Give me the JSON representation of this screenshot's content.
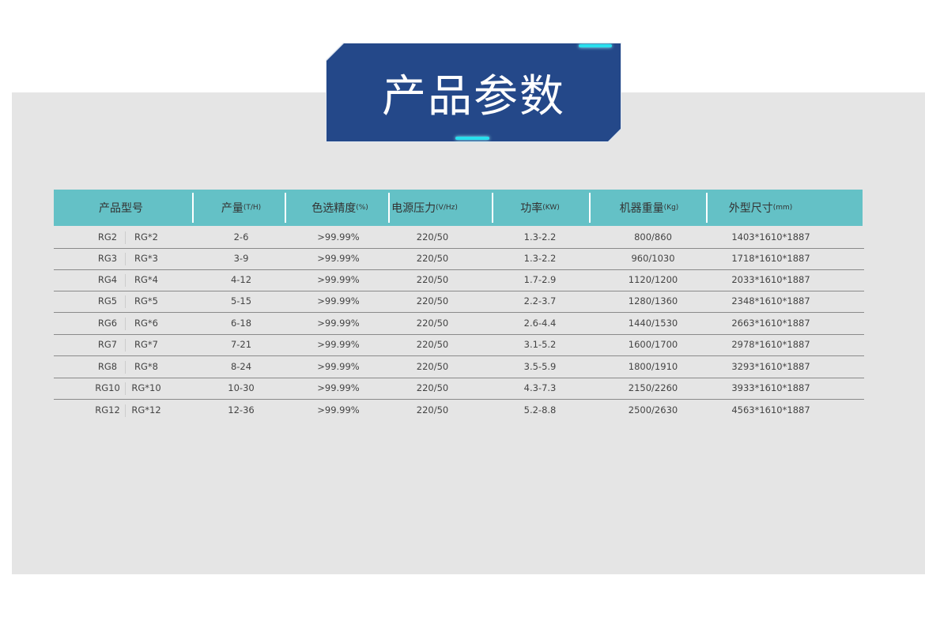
{
  "title": "产品参数",
  "colors": {
    "banner": "#244889",
    "header": "#64c1c6",
    "accent": "#28e0ee",
    "panel": "#e5e5e5"
  },
  "headers": [
    {
      "label": "产品型号",
      "unit": ""
    },
    {
      "label": "产量",
      "unit": "(T/H)"
    },
    {
      "label": "色选精度",
      "unit": "(%)"
    },
    {
      "label": "电源压力",
      "unit": "(V/Hz)"
    },
    {
      "label": "功率",
      "unit": "(KW)"
    },
    {
      "label": "机器重量",
      "unit": "(Kg)"
    },
    {
      "label": "外型尺寸",
      "unit": "(mm)"
    }
  ],
  "rows": [
    [
      "RG2",
      "RG*2",
      "2-6",
      ">99.99%",
      "220/50",
      "1.3-2.2",
      "800/860",
      "1403*1610*1887"
    ],
    [
      "RG3",
      "RG*3",
      "3-9",
      ">99.99%",
      "220/50",
      "1.3-2.2",
      "960/1030",
      "1718*1610*1887"
    ],
    [
      "RG4",
      "RG*4",
      "4-12",
      ">99.99%",
      "220/50",
      "1.7-2.9",
      "1120/1200",
      "2033*1610*1887"
    ],
    [
      "RG5",
      "RG*5",
      "5-15",
      ">99.99%",
      "220/50",
      "2.2-3.7",
      "1280/1360",
      "2348*1610*1887"
    ],
    [
      "RG6",
      "RG*6",
      "6-18",
      ">99.99%",
      "220/50",
      "2.6-4.4",
      "1440/1530",
      "2663*1610*1887"
    ],
    [
      "RG7",
      "RG*7",
      "7-21",
      ">99.99%",
      "220/50",
      "3.1-5.2",
      "1600/1700",
      "2978*1610*1887"
    ],
    [
      "RG8",
      "RG*8",
      "8-24",
      ">99.99%",
      "220/50",
      "3.5-5.9",
      "1800/1910",
      "3293*1610*1887"
    ],
    [
      "RG10",
      "RG*10",
      "10-30",
      ">99.99%",
      "220/50",
      "4.3-7.3",
      "2150/2260",
      "3933*1610*1887"
    ],
    [
      "RG12",
      "RG*12",
      "12-36",
      ">99.99%",
      "220/50",
      "5.2-8.8",
      "2500/2630",
      "4563*1610*1887"
    ]
  ]
}
